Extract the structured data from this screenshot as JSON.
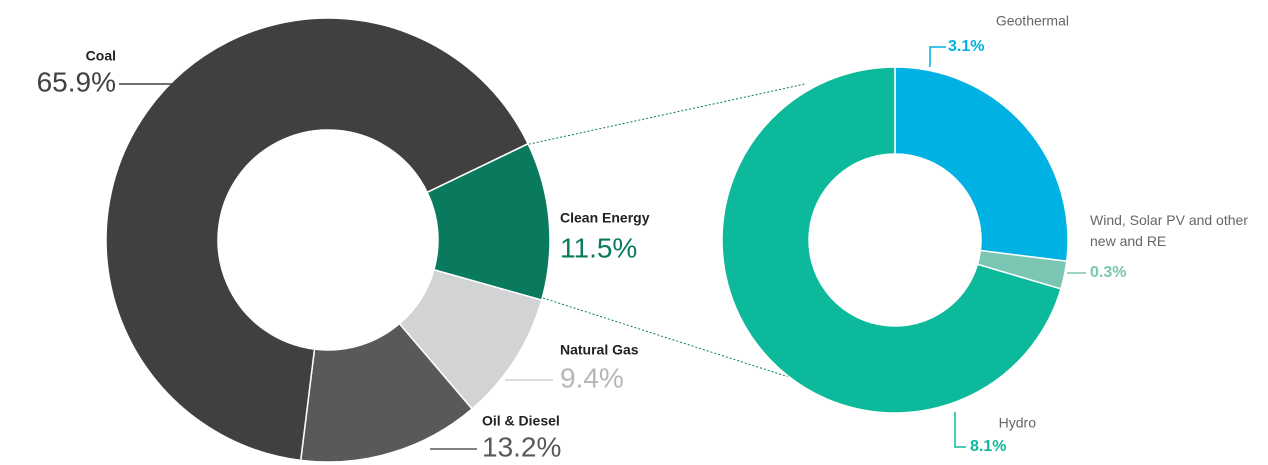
{
  "chart_data": [
    {
      "type": "pie",
      "categories": [
        "Clean Energy",
        "Natural Gas",
        "Oil & Diesel",
        "Coal"
      ],
      "values": [
        11.5,
        9.4,
        13.2,
        65.9
      ],
      "value_labels": [
        "11.5%",
        "9.4%",
        "13.2%",
        "65.9%"
      ],
      "colors": [
        "#0a7a5e",
        "#d1d3d4",
        "#58595b",
        "#404042"
      ]
    },
    {
      "type": "pie",
      "categories": [
        "Geothermal",
        "Wind, Solar PV and other new and RE",
        "Hydro"
      ],
      "values": [
        3.1,
        0.3,
        8.1
      ],
      "value_labels": [
        "3.1%",
        "0.3%",
        "8.1%"
      ],
      "colors": [
        "#00b2e3",
        "#7ac6b2",
        "#0db99b"
      ]
    }
  ]
}
